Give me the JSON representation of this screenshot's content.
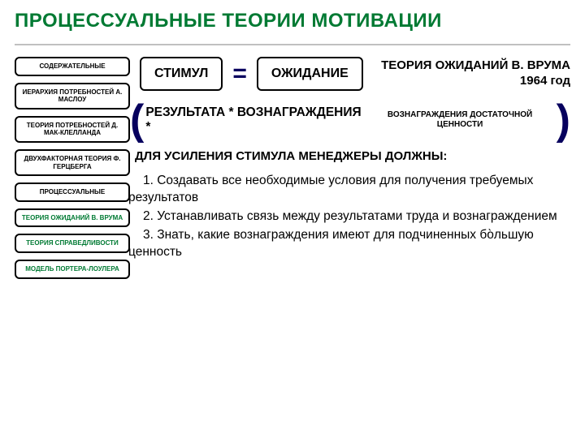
{
  "title": "ПРОЦЕССУАЛЬНЫЕ ТЕОРИИ МОТИВАЦИИ",
  "colors": {
    "green": "#007a33",
    "navy": "#07005e",
    "black": "#000000",
    "underline": "#c0c0c0",
    "bg": "#ffffff"
  },
  "sidebar": [
    {
      "text": "СОДЕРЖАТЕЛЬНЫЕ",
      "green": false
    },
    {
      "text": "ИЕРАРХИЯ ПОТРЕБНОСТЕЙ А. МАСЛОУ",
      "green": false
    },
    {
      "text": "ТЕОРИЯ ПОТРЕБНОСТЕЙ Д. МАК-КЛЕЛЛАНДА",
      "green": false
    },
    {
      "text": "ДВУХФАКТОРНАЯ ТЕОРИЯ Ф. ГЕРЦБЕРГА",
      "green": false
    },
    {
      "text": "ПРОЦЕССУАЛЬНЫЕ",
      "green": false
    },
    {
      "text": "ТЕОРИЯ ОЖИДАНИЙ В. ВРУМА",
      "green": true
    },
    {
      "text": "ТЕОРИЯ СПРАВЕДЛИВОСТИ",
      "green": true
    },
    {
      "text": "МОДЕЛЬ ПОРТЕРА-ЛОУЛЕРА",
      "green": true
    }
  ],
  "row1": {
    "box1": "СТИМУЛ",
    "eq": "=",
    "box2": "ОЖИДАНИЕ",
    "theory_title": "ТЕОРИЯ ОЖИДАНИЙ В. ВРУМА 1964 год"
  },
  "formula": {
    "open": "(",
    "main": "РЕЗУЛЬТАТА * ВОЗНАГРАЖДЕНИЯ *",
    "small": "ВОЗНАГРАЖДЕНИЯ ДОСТАТОЧНОЙ ЦЕННОСТИ",
    "close": ")"
  },
  "subheading": "ДЛЯ УСИЛЕНИЯ СТИМУЛА МЕНЕДЖЕРЫ ДОЛЖНЫ:",
  "points": [
    "1. Создавать все необходимые условия для получения требуемых результатов",
    "2. Устанавливать связь между результатами труда и вознаграждением",
    "3. Знать, какие вознаграждения имеют для подчиненных бо̀льшую ценность"
  ]
}
